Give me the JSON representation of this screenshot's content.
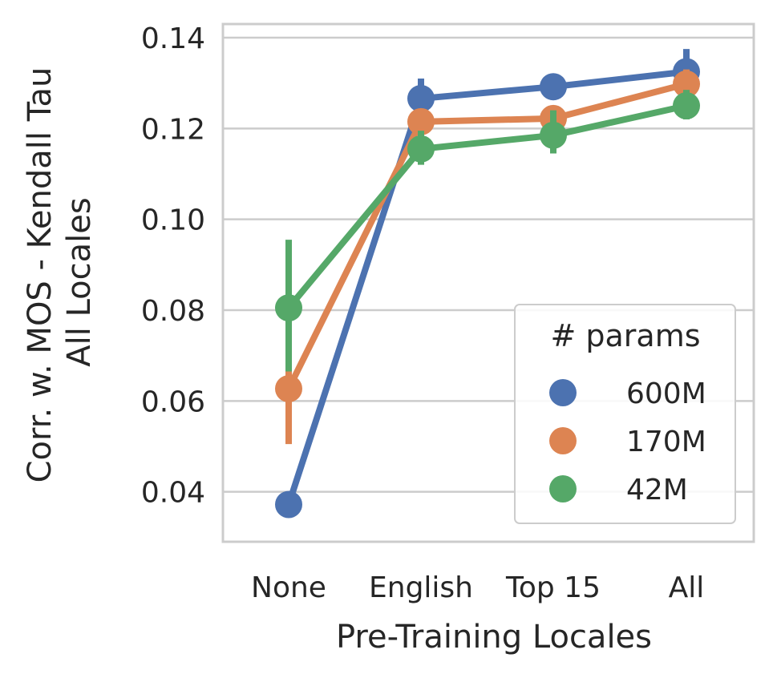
{
  "chart_data": {
    "type": "line",
    "xlabel": "Pre-Training Locales",
    "ylabel_lines": [
      "Corr. w. MOS - Kendall Tau",
      "All Locales"
    ],
    "categories": [
      "None",
      "English",
      "Top 15",
      "All"
    ],
    "ylim": [
      0.029,
      0.143
    ],
    "yticks": [
      0.04,
      0.06,
      0.08,
      0.1,
      0.12,
      0.14
    ],
    "ytick_labels": [
      "0.04",
      "0.06",
      "0.08",
      "0.10",
      "0.12",
      "0.14"
    ],
    "grid": "horizontal",
    "legend": {
      "title": "# params",
      "placement": "lower-right"
    },
    "series": [
      {
        "name": "600M",
        "color": "#4c72b0",
        "values": [
          0.0372,
          0.1266,
          0.1292,
          0.1325
        ],
        "ci": [
          [
            0.0355,
            0.0385
          ],
          [
            0.1225,
            0.131
          ],
          [
            0.128,
            0.1305
          ],
          [
            0.1275,
            0.1375
          ]
        ]
      },
      {
        "name": "170M",
        "color": "#dd8452",
        "values": [
          0.0627,
          0.1215,
          0.1222,
          0.1298
        ],
        "ci": [
          [
            0.0505,
            0.072
          ],
          [
            0.1195,
            0.1235
          ],
          [
            0.1195,
            0.125
          ],
          [
            0.1265,
            0.133
          ]
        ]
      },
      {
        "name": "42M",
        "color": "#55a868",
        "values": [
          0.0805,
          0.1155,
          0.1185,
          0.125
        ],
        "ci": [
          [
            0.0665,
            0.0955
          ],
          [
            0.112,
            0.1195
          ],
          [
            0.1145,
            0.124
          ],
          [
            0.122,
            0.1285
          ]
        ]
      }
    ]
  }
}
